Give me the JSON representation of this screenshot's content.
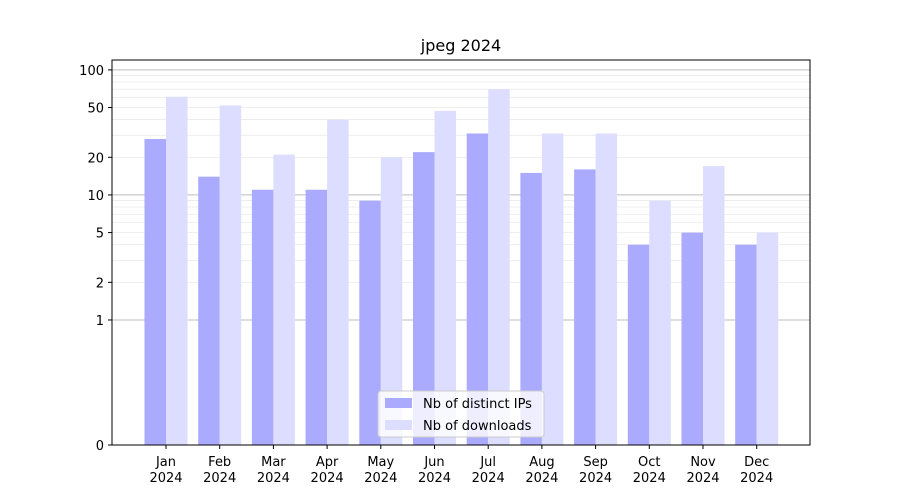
{
  "chart_data": {
    "type": "bar",
    "title": "jpeg 2024",
    "categories": [
      [
        "Jan",
        "2024"
      ],
      [
        "Feb",
        "2024"
      ],
      [
        "Mar",
        "2024"
      ],
      [
        "Apr",
        "2024"
      ],
      [
        "May",
        "2024"
      ],
      [
        "Jun",
        "2024"
      ],
      [
        "Jul",
        "2024"
      ],
      [
        "Aug",
        "2024"
      ],
      [
        "Sep",
        "2024"
      ],
      [
        "Oct",
        "2024"
      ],
      [
        "Nov",
        "2024"
      ],
      [
        "Dec",
        "2024"
      ]
    ],
    "series": [
      {
        "name": "Nb of distinct IPs",
        "color": "#aaaaff",
        "values": [
          28,
          14,
          11,
          11,
          9,
          22,
          31,
          15,
          16,
          4,
          5,
          4
        ]
      },
      {
        "name": "Nb of downloads",
        "color": "#ddddff",
        "values": [
          61,
          52,
          21,
          40,
          20,
          47,
          70,
          31,
          31,
          9,
          17,
          5
        ]
      }
    ],
    "y_scale": "symlog",
    "ylim": [
      0,
      120
    ],
    "y_ticks": [
      0,
      1,
      2,
      5,
      10,
      20,
      50,
      100
    ],
    "grid": true,
    "legend_position": "lower center",
    "xlabel": "",
    "ylabel": ""
  }
}
